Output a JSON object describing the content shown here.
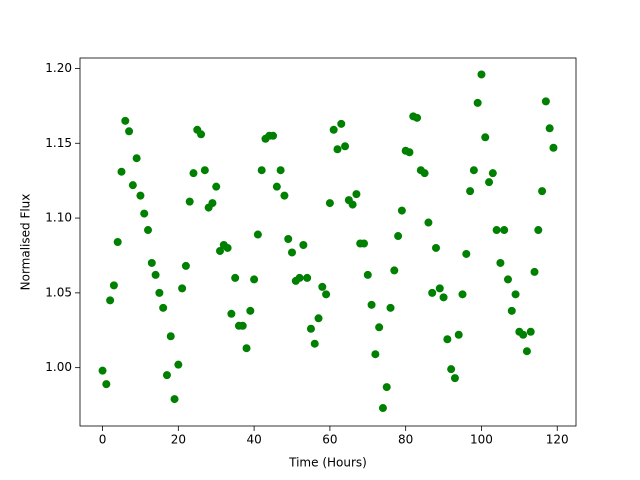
{
  "chart_data": {
    "type": "scatter",
    "xlabel": "Time (Hours)",
    "ylabel": "Normalised Flux",
    "color": "#008000",
    "grid": false,
    "x": [
      0,
      1,
      2,
      3,
      4,
      5,
      6,
      7,
      8,
      9,
      10,
      11,
      12,
      13,
      14,
      15,
      16,
      17,
      18,
      19,
      20,
      21,
      22,
      23,
      24,
      25,
      26,
      27,
      28,
      29,
      30,
      31,
      32,
      33,
      34,
      35,
      36,
      37,
      38,
      39,
      40,
      41,
      42,
      43,
      44,
      45,
      46,
      47,
      48,
      49,
      50,
      51,
      52,
      53,
      54,
      55,
      56,
      57,
      58,
      59,
      60,
      61,
      62,
      63,
      64,
      65,
      66,
      67,
      68,
      69,
      70,
      71,
      72,
      73,
      74,
      75,
      76,
      77,
      78,
      79,
      80,
      81,
      82,
      83,
      84,
      85,
      86,
      87,
      88,
      89,
      90,
      91,
      92,
      93,
      94,
      95,
      96,
      97,
      98,
      99,
      100,
      101,
      102,
      103,
      104,
      105,
      106,
      107,
      108,
      109,
      110,
      111,
      112,
      113,
      114,
      115,
      116,
      117,
      118,
      119
    ],
    "values": [
      0.998,
      0.989,
      1.045,
      1.055,
      1.084,
      1.131,
      1.165,
      1.158,
      1.122,
      1.14,
      1.115,
      1.103,
      1.092,
      1.07,
      1.062,
      1.05,
      1.04,
      0.995,
      1.021,
      0.979,
      1.002,
      1.053,
      1.068,
      1.111,
      1.13,
      1.159,
      1.156,
      1.132,
      1.107,
      1.11,
      1.121,
      1.078,
      1.082,
      1.08,
      1.036,
      1.06,
      1.028,
      1.028,
      1.013,
      1.038,
      1.059,
      1.089,
      1.132,
      1.153,
      1.155,
      1.155,
      1.121,
      1.132,
      1.115,
      1.086,
      1.077,
      1.058,
      1.06,
      1.082,
      1.06,
      1.026,
      1.016,
      1.033,
      1.054,
      1.049,
      1.11,
      1.159,
      1.146,
      1.163,
      1.148,
      1.112,
      1.109,
      1.116,
      1.083,
      1.083,
      1.062,
      1.042,
      1.009,
      1.027,
      0.973,
      0.987,
      1.04,
      1.065,
      1.088,
      1.105,
      1.145,
      1.144,
      1.168,
      1.167,
      1.132,
      1.13,
      1.097,
      1.05,
      1.08,
      1.053,
      1.047,
      1.019,
      0.999,
      0.993,
      1.022,
      1.049,
      1.076,
      1.118,
      1.132,
      1.177,
      1.196,
      1.154,
      1.124,
      1.13,
      1.092,
      1.07,
      1.092,
      1.059,
      1.038,
      1.049,
      1.024,
      1.022,
      1.011,
      1.024,
      1.064,
      1.092,
      1.118,
      1.178,
      1.16,
      1.147
    ],
    "xlim": [
      -5.95,
      124.95
    ],
    "ylim": [
      0.961,
      1.207
    ],
    "xticks": [
      0,
      20,
      40,
      60,
      80,
      100,
      120
    ],
    "yticks": [
      {
        "value": 1,
        "label": "1.00"
      },
      1.05,
      {
        "value": 1.1,
        "label": "1.10"
      },
      1.15,
      {
        "value": 1.2,
        "label": "1.20"
      }
    ]
  }
}
